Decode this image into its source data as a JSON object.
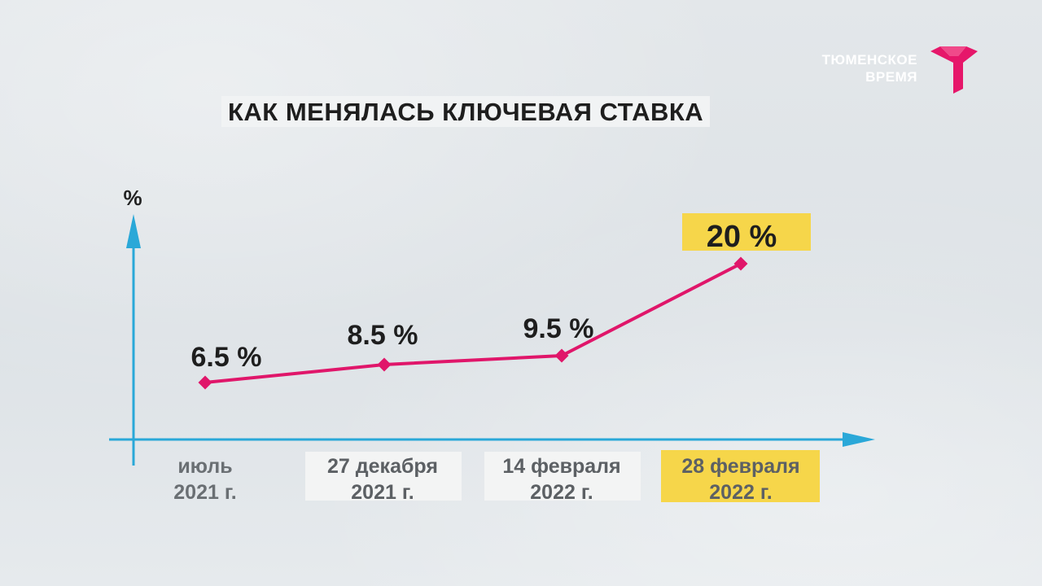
{
  "brand": {
    "name_line1": "ТЮМЕНСКОЕ",
    "name_line2": "ВРЕМЯ",
    "accent_color": "#e6176a"
  },
  "chart_data": {
    "type": "line",
    "title": "КАК МЕНЯЛАСЬ КЛЮЧЕВАЯ СТАВКА",
    "ylabel": "%",
    "xlabel": "",
    "categories": [
      [
        "июль",
        "2021 г."
      ],
      [
        "27 декабря",
        "2021 г."
      ],
      [
        "14 февраля",
        "2022 г."
      ],
      [
        "28 февраля",
        "2022 г."
      ]
    ],
    "values": [
      6.5,
      8.5,
      9.5,
      20
    ],
    "data_labels": [
      "6.5 %",
      "8.5 %",
      "9.5 %",
      "20 %"
    ],
    "highlighted_index": 3,
    "line_color": "#e0166a",
    "axis_color": "#2aa8d8",
    "highlight_color": "#f6d64a",
    "label_box_color": "#f3f4f4",
    "grid": false,
    "legend": "none"
  }
}
